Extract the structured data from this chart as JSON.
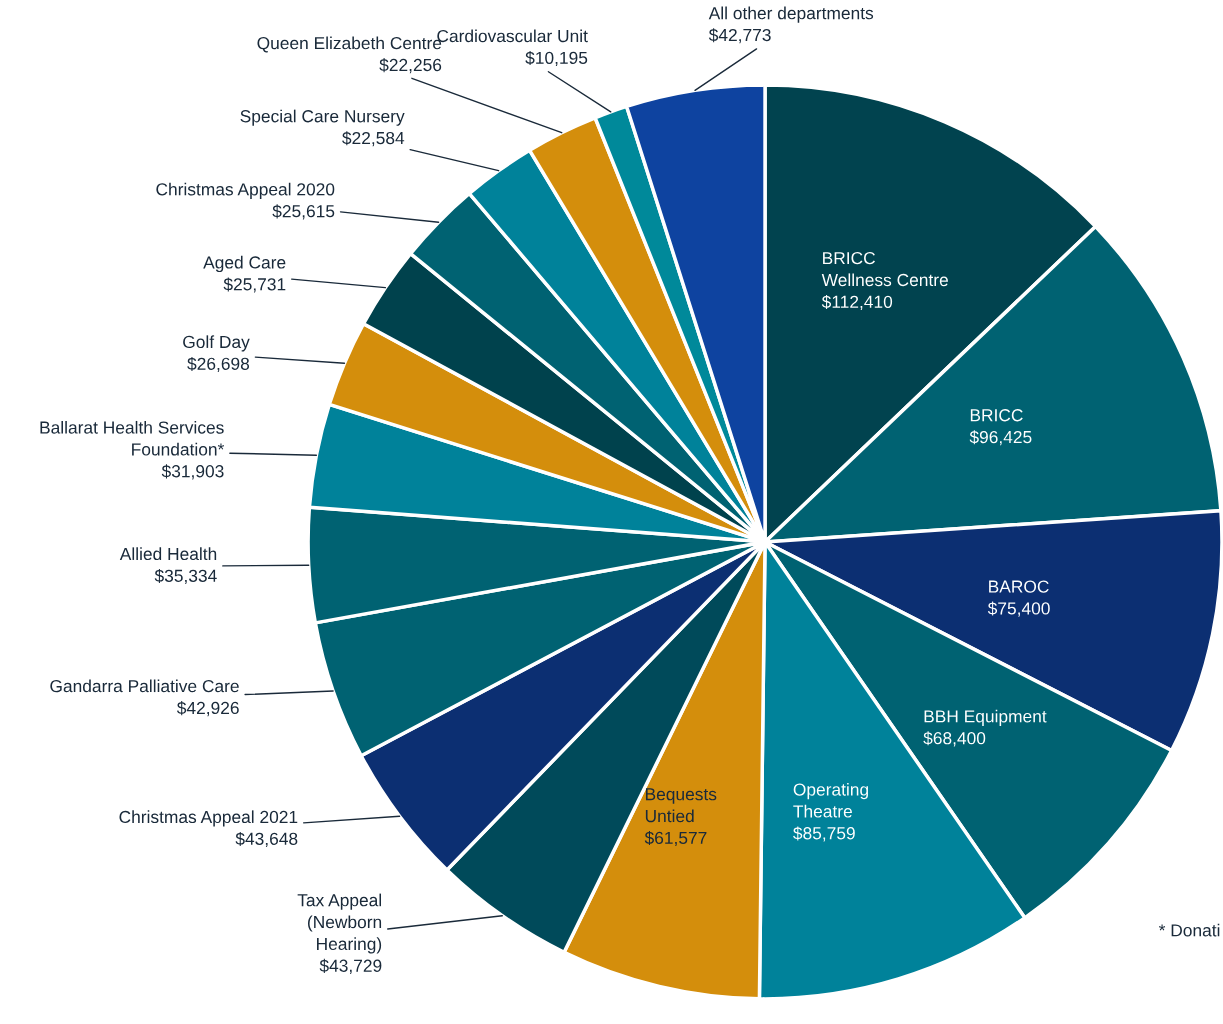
{
  "chart_data": {
    "type": "pie",
    "categories": [
      "BRICC\nWellness Centre",
      "BRICC",
      "BAROC",
      "BBH Equipment",
      "Operating\nTheatre",
      "Bequests\nUntied",
      "Tax Appeal\n(Newborn\nHearing)",
      "Christmas Appeal 2021",
      "Gandarra Palliative Care",
      "Allied Health",
      "Ballarat Health Services\nFoundation*",
      "Golf Day",
      "Aged Care",
      "Christmas Appeal 2020",
      "Special Care Nursery",
      "Queen Elizabeth Centre",
      "Cardiovascular Unit",
      "All other departments"
    ],
    "values": [
      112410,
      96425,
      75400,
      68400,
      85759,
      61577,
      43729,
      43648,
      42926,
      35334,
      31903,
      26698,
      25731,
      25615,
      22584,
      22256,
      10195,
      42773
    ],
    "value_labels": [
      "$112,410",
      "$96,425",
      "$75,400",
      "$68,400",
      "$85,759",
      "$61,577",
      "$43,729",
      "$43,648",
      "$42,926",
      "$35,334",
      "$31,903",
      "$26,698",
      "$25,731",
      "$25,615",
      "$22,584",
      "$22,256",
      "$10,195",
      "$42,773"
    ],
    "colors": [
      "#01434f",
      "#006272",
      "#0c2f72",
      "#006272",
      "#00829a",
      "#d48e0c",
      "#004a5a",
      "#0c2f72",
      "#006272",
      "#006272",
      "#00829a",
      "#d48e0c",
      "#00424d",
      "#006272",
      "#00829a",
      "#d48e0c",
      "#00899a",
      "#0e43a0"
    ],
    "annotations": [
      "* Donati"
    ]
  }
}
